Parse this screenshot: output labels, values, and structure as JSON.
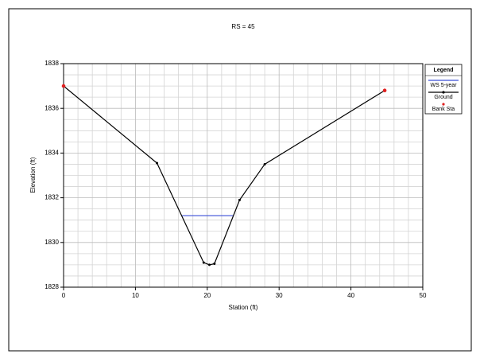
{
  "chart_data": {
    "type": "line",
    "title": "RS = 45",
    "x_label": "Station (ft)",
    "y_label": "Elevation (ft)",
    "legend_title": "Legend",
    "legend": "right",
    "series": [
      {
        "name": "WS 5-year",
        "color": "#3b4fd8",
        "x": [
          16.5,
          23.6
        ],
        "values": [
          1831.2,
          1831.2
        ],
        "markers": false
      },
      {
        "name": "Ground",
        "color": "#000000",
        "x": [
          0,
          13,
          19.5,
          20.3,
          21,
          24.5,
          28,
          44.7
        ],
        "values": [
          1837,
          1833.55,
          1829.1,
          1829,
          1829.05,
          1831.9,
          1833.5,
          1836.8
        ],
        "markers": true
      },
      {
        "name": "Bank Sta",
        "color": "#e02020",
        "x": [
          0,
          44.7
        ],
        "values": [
          1837,
          1836.8
        ],
        "markers": true,
        "line": false
      }
    ],
    "xlim": [
      0,
      50
    ],
    "xticks": [
      0,
      10,
      20,
      30,
      40,
      50
    ],
    "ylim": [
      1828,
      1838
    ],
    "yticks": [
      1828,
      1830,
      1832,
      1834,
      1836,
      1838
    ],
    "grid": true
  }
}
